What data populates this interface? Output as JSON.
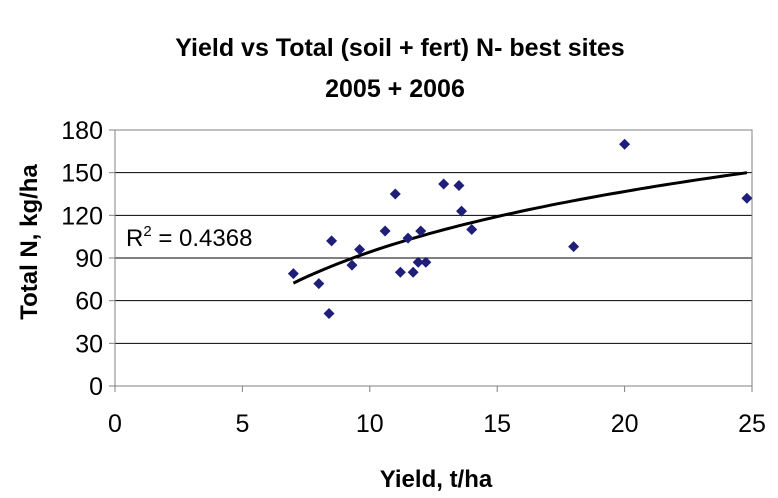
{
  "chart_data": {
    "type": "scatter",
    "title_lines": [
      "Yield vs Total (soil + fert) N- best sites",
      "2005 + 2006"
    ],
    "xlabel": "Yield, t/ha",
    "ylabel": "Total N, kg/ha",
    "xlim": [
      0,
      25
    ],
    "ylim": [
      0,
      180
    ],
    "x_ticks": [
      0,
      5,
      10,
      15,
      20,
      25
    ],
    "y_ticks": [
      0,
      30,
      60,
      90,
      120,
      150,
      180
    ],
    "grid": "horizontal",
    "legend": "none",
    "marker_color": "#1F1F7A",
    "trendline_color": "#000000",
    "trendline": {
      "type": "logarithmic",
      "x_range": [
        7.0,
        24.8
      ],
      "annotation_prefix": "R",
      "annotation_sup": "2",
      "annotation_value": " = 0.4368"
    },
    "points": [
      {
        "x": 7.0,
        "y": 79
      },
      {
        "x": 8.0,
        "y": 72
      },
      {
        "x": 8.4,
        "y": 51
      },
      {
        "x": 8.5,
        "y": 102
      },
      {
        "x": 9.3,
        "y": 85
      },
      {
        "x": 9.6,
        "y": 96
      },
      {
        "x": 10.6,
        "y": 109
      },
      {
        "x": 11.0,
        "y": 135
      },
      {
        "x": 11.2,
        "y": 80
      },
      {
        "x": 11.5,
        "y": 104
      },
      {
        "x": 11.7,
        "y": 80
      },
      {
        "x": 11.9,
        "y": 87
      },
      {
        "x": 12.0,
        "y": 109
      },
      {
        "x": 12.2,
        "y": 87
      },
      {
        "x": 12.9,
        "y": 142
      },
      {
        "x": 13.5,
        "y": 141
      },
      {
        "x": 13.6,
        "y": 123
      },
      {
        "x": 14.0,
        "y": 110
      },
      {
        "x": 18.0,
        "y": 98
      },
      {
        "x": 20.0,
        "y": 170
      },
      {
        "x": 24.8,
        "y": 132
      }
    ]
  }
}
